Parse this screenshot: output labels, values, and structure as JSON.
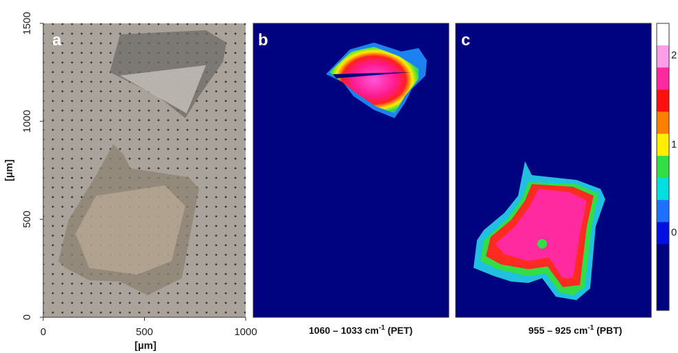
{
  "figure": {
    "panel_a": {
      "label": "a",
      "y_axis_title": "[µm]",
      "x_axis_title": "[µm]",
      "y_ticks": [
        "0",
        "500",
        "1000",
        "1500"
      ],
      "x_ticks": [
        "0",
        "500",
        "1000"
      ]
    },
    "panel_b": {
      "label": "b",
      "caption": "1060 – 1033 cm",
      "caption_sup": "-1",
      "caption_suffix": " (PET)"
    },
    "panel_c": {
      "label": "c",
      "caption": "955 – 925 cm",
      "caption_sup": "-1",
      "caption_suffix": " (PBT)"
    },
    "colorbar": {
      "labels": [
        "2",
        "1",
        "0"
      ]
    }
  }
}
